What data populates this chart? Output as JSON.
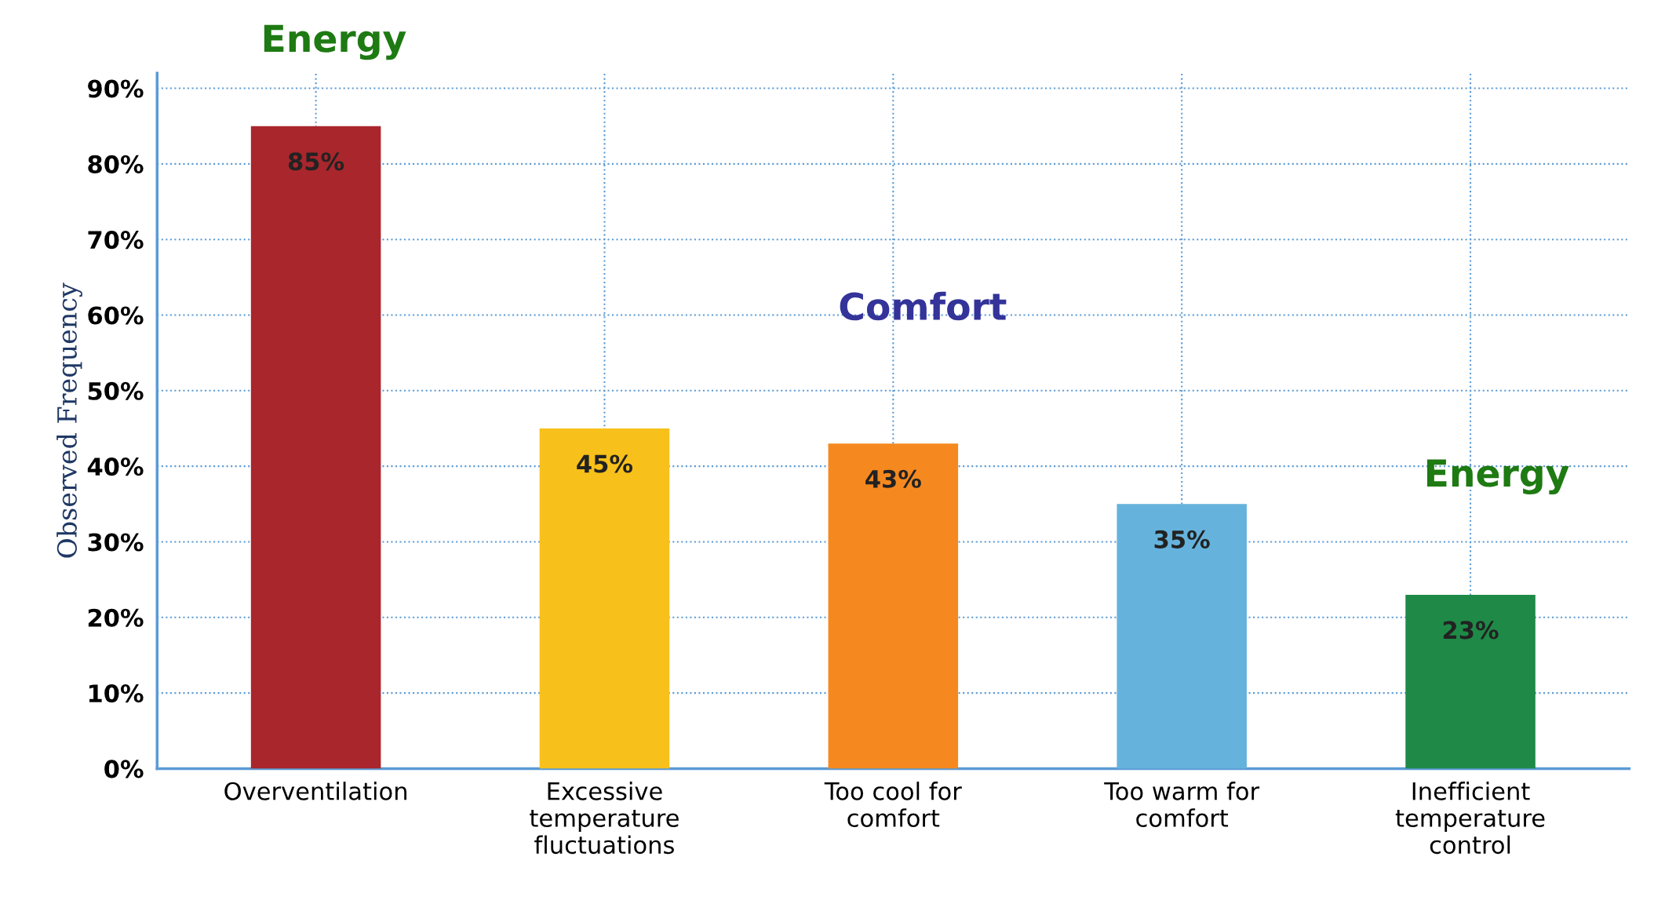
{
  "chart_data": {
    "type": "bar",
    "ylabel": "Observed Frequency",
    "categories": [
      "Overventilation",
      "Excessive temperature fluctuations",
      "Too cool for comfort",
      "Too warm for comfort",
      "Inefficient temperature control"
    ],
    "values": [
      85,
      45,
      43,
      35,
      23
    ],
    "colors": [
      "#a8262c",
      "#f8c01a",
      "#f5891f",
      "#65b3dc",
      "#1f8a47"
    ],
    "value_labels": [
      "85%",
      "45%",
      "43%",
      "35%",
      "23%"
    ],
    "ylim": [
      0,
      92
    ],
    "yticks": [
      {
        "value": 0,
        "label": "0%"
      },
      {
        "value": 10,
        "label": "10%"
      },
      {
        "value": 20,
        "label": "20%"
      },
      {
        "value": 30,
        "label": "30%"
      },
      {
        "value": 40,
        "label": "40%"
      },
      {
        "value": 50,
        "label": "50%"
      },
      {
        "value": 60,
        "label": "60%"
      },
      {
        "value": 70,
        "label": "70%"
      },
      {
        "value": 80,
        "label": "80%"
      },
      {
        "value": 90,
        "label": "90%"
      }
    ],
    "grid": true,
    "annotations": [
      "Energy",
      "Comfort",
      "Energy"
    ]
  }
}
